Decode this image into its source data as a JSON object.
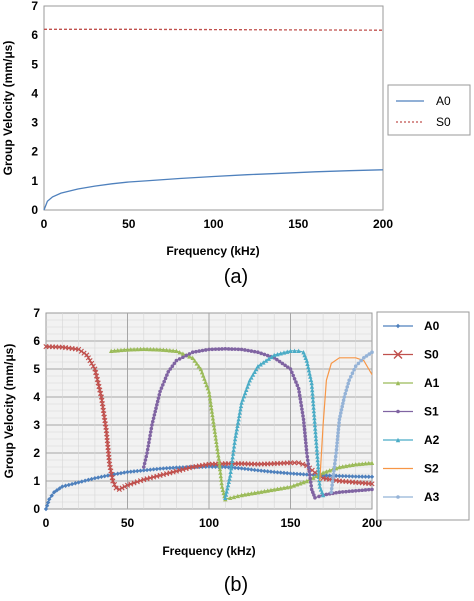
{
  "chart_data": [
    {
      "type": "line",
      "panel_label": "(a)",
      "xlabel": "Frequency (kHz)",
      "ylabel": "Group Velocity (mm/μs)",
      "xlim": [
        0,
        200
      ],
      "ylim": [
        0,
        7
      ],
      "xticks": [
        "0",
        "50",
        "100",
        "150",
        "200"
      ],
      "yticks": [
        "0",
        "1",
        "2",
        "3",
        "4",
        "5",
        "6",
        "7"
      ],
      "grid": false,
      "legend": "right",
      "series": [
        {
          "name": "A0",
          "color": "#4f81bd",
          "style": "solid",
          "x": [
            0,
            2,
            5,
            10,
            20,
            30,
            40,
            50,
            60,
            80,
            100,
            120,
            140,
            160,
            180,
            200
          ],
          "y": [
            0,
            0.3,
            0.45,
            0.58,
            0.72,
            0.82,
            0.9,
            0.96,
            1.0,
            1.08,
            1.15,
            1.21,
            1.26,
            1.31,
            1.35,
            1.38
          ]
        },
        {
          "name": "S0",
          "color": "#c0504d",
          "style": "dashed",
          "x": [
            0,
            50,
            100,
            150,
            200
          ],
          "y": [
            6.2,
            6.2,
            6.19,
            6.18,
            6.17
          ]
        }
      ]
    },
    {
      "type": "line",
      "panel_label": "(b)",
      "xlabel": "Frequency (kHz)",
      "ylabel": "Group Velocity (mm/μs)",
      "xlim": [
        0,
        200
      ],
      "ylim": [
        0,
        7
      ],
      "xticks": [
        "0",
        "50",
        "100",
        "150",
        "200"
      ],
      "yticks": [
        "0",
        "1",
        "2",
        "3",
        "4",
        "5",
        "6",
        "7"
      ],
      "grid": true,
      "legend": "right",
      "series": [
        {
          "name": "A0",
          "color": "#4f81bd",
          "marker": "diamond",
          "x": [
            0,
            2,
            5,
            10,
            20,
            30,
            40,
            50,
            60,
            70,
            80,
            90,
            100,
            110,
            120,
            130,
            140,
            150,
            160,
            170,
            180,
            190,
            200
          ],
          "y": [
            0,
            0.35,
            0.6,
            0.8,
            0.95,
            1.1,
            1.22,
            1.32,
            1.38,
            1.44,
            1.48,
            1.5,
            1.51,
            1.5,
            1.45,
            1.38,
            1.32,
            1.27,
            1.23,
            1.2,
            1.18,
            1.16,
            1.15
          ]
        },
        {
          "name": "S0",
          "color": "#c0504d",
          "marker": "x",
          "x": [
            0,
            10,
            20,
            25,
            30,
            34,
            37,
            39,
            41,
            43,
            45,
            50,
            60,
            70,
            80,
            90,
            100,
            110,
            120,
            130,
            140,
            150,
            155,
            160,
            165,
            170,
            180,
            190,
            200
          ],
          "y": [
            5.8,
            5.78,
            5.7,
            5.5,
            5.0,
            4.0,
            2.8,
            1.6,
            1.0,
            0.75,
            0.7,
            0.85,
            1.05,
            1.2,
            1.35,
            1.5,
            1.6,
            1.62,
            1.62,
            1.6,
            1.62,
            1.65,
            1.65,
            1.55,
            1.3,
            1.1,
            1.0,
            0.95,
            0.9
          ]
        },
        {
          "name": "A1",
          "color": "#9bbb59",
          "marker": "triangle",
          "x": [
            40,
            50,
            60,
            70,
            80,
            90,
            95,
            100,
            103,
            106,
            108,
            110,
            113,
            120,
            130,
            140,
            150,
            160,
            170,
            180,
            190,
            200
          ],
          "y": [
            5.65,
            5.7,
            5.72,
            5.7,
            5.65,
            5.4,
            5.0,
            4.2,
            3.0,
            1.8,
            0.8,
            0.35,
            0.4,
            0.5,
            0.6,
            0.7,
            0.8,
            1.0,
            1.3,
            1.5,
            1.6,
            1.65
          ]
        },
        {
          "name": "S1",
          "color": "#8064a2",
          "marker": "circle",
          "x": [
            60,
            62,
            65,
            70,
            75,
            80,
            90,
            100,
            110,
            120,
            130,
            140,
            150,
            155,
            158,
            160,
            163,
            165,
            170,
            180,
            190,
            200
          ],
          "y": [
            1.5,
            2.0,
            3.0,
            4.2,
            4.9,
            5.3,
            5.6,
            5.7,
            5.72,
            5.7,
            5.6,
            5.4,
            5.0,
            4.3,
            3.2,
            2.0,
            0.7,
            0.4,
            0.5,
            0.6,
            0.65,
            0.7
          ]
        },
        {
          "name": "A2",
          "color": "#4bacc6",
          "marker": "triangle",
          "x": [
            110,
            113,
            116,
            120,
            125,
            130,
            140,
            150,
            155,
            158,
            160,
            163,
            165,
            167,
            168,
            170
          ],
          "y": [
            0.4,
            1.2,
            2.5,
            3.8,
            4.6,
            5.1,
            5.5,
            5.65,
            5.65,
            5.6,
            5.3,
            4.5,
            3.0,
            1.5,
            0.8,
            0.5
          ]
        },
        {
          "name": "S2",
          "color": "#f79646",
          "marker": "none",
          "x": [
            168,
            170,
            172,
            175,
            180,
            185,
            190,
            195,
            198,
            200
          ],
          "y": [
            1.0,
            3.0,
            4.6,
            5.2,
            5.4,
            5.4,
            5.4,
            5.3,
            5.0,
            4.8
          ]
        },
        {
          "name": "A3",
          "color": "#95b3d7",
          "marker": "circle",
          "x": [
            175,
            178,
            180,
            183,
            186,
            190,
            195,
            200
          ],
          "y": [
            0.6,
            2.0,
            3.2,
            4.0,
            4.6,
            5.1,
            5.4,
            5.6
          ]
        }
      ]
    }
  ]
}
